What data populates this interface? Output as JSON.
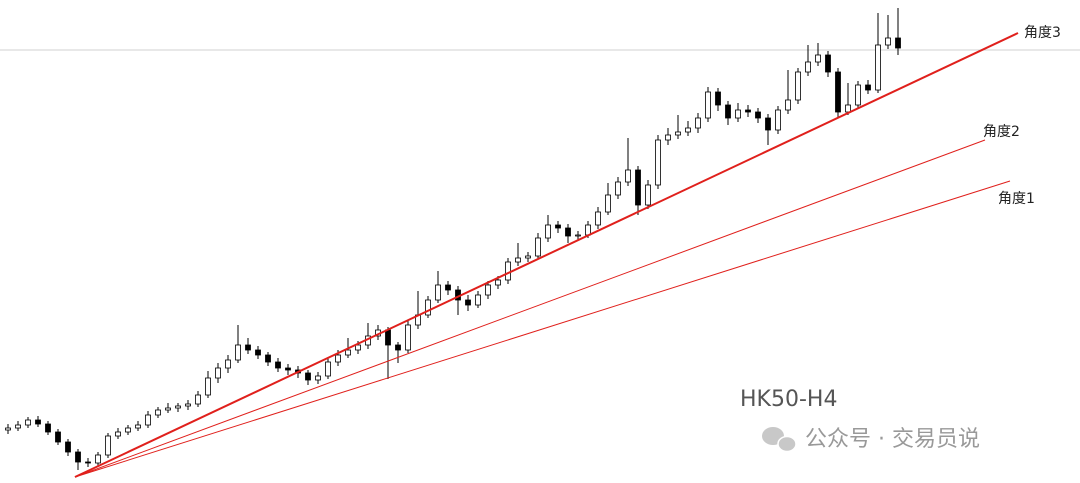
{
  "chart_data": {
    "type": "candlestick",
    "watermark": "HK50-H4",
    "footer": "公众号 · 交易员说",
    "xlim": [
      -0.8,
      107.2
    ],
    "ylim": [
      0,
      483
    ],
    "hline": 433,
    "up_color": "#ffffff",
    "down_color": "#000000",
    "line_color": "#e0201c",
    "open": [
      53,
      55,
      58,
      63,
      59,
      51,
      41,
      31,
      21,
      20,
      28,
      47,
      51,
      55,
      58,
      68,
      73,
      75,
      77,
      79,
      88,
      105,
      115,
      123,
      138,
      133,
      128,
      121,
      115,
      113,
      110,
      103,
      107,
      121,
      128,
      133,
      138,
      147,
      153,
      138,
      133,
      158,
      168,
      183,
      198,
      193,
      183,
      178,
      188,
      198,
      203,
      221,
      225,
      227,
      245,
      258,
      255,
      247,
      248,
      258,
      271,
      288,
      301,
      313,
      278,
      298,
      343,
      348,
      351,
      355,
      365,
      391,
      378,
      365,
      373,
      371,
      365,
      353,
      373,
      383,
      411,
      421,
      428,
      411,
      371,
      378,
      398,
      393,
      438,
      445
    ],
    "high": [
      59,
      62,
      66,
      67,
      62,
      54,
      44,
      34,
      25,
      31,
      50,
      55,
      58,
      62,
      72,
      76,
      80,
      80,
      83,
      92,
      112,
      120,
      128,
      158,
      145,
      137,
      131,
      125,
      119,
      117,
      113,
      111,
      125,
      133,
      145,
      142,
      160,
      158,
      156,
      141,
      162,
      192,
      187,
      212,
      202,
      197,
      188,
      192,
      202,
      207,
      225,
      240,
      231,
      250,
      268,
      262,
      259,
      252,
      262,
      276,
      300,
      306,
      345,
      317,
      303,
      348,
      355,
      368,
      362,
      370,
      396,
      395,
      382,
      380,
      378,
      375,
      369,
      377,
      413,
      415,
      438,
      440,
      432,
      415,
      400,
      402,
      403,
      470,
      468,
      475
    ],
    "low": [
      49,
      52,
      55,
      56,
      48,
      38,
      27,
      13,
      16,
      17,
      25,
      44,
      48,
      52,
      55,
      65,
      70,
      71,
      73,
      76,
      85,
      100,
      110,
      120,
      129,
      124,
      117,
      111,
      108,
      105,
      98,
      99,
      104,
      117,
      125,
      129,
      134,
      143,
      104,
      120,
      130,
      154,
      165,
      180,
      188,
      168,
      172,
      175,
      184,
      194,
      199,
      217,
      221,
      224,
      241,
      250,
      240,
      242,
      245,
      254,
      268,
      284,
      297,
      268,
      274,
      294,
      338,
      344,
      347,
      350,
      361,
      372,
      358,
      361,
      366,
      360,
      338,
      349,
      369,
      379,
      407,
      417,
      406,
      365,
      368,
      374,
      389,
      390,
      434,
      428
    ],
    "close": [
      55,
      58,
      63,
      59,
      51,
      41,
      31,
      21,
      20,
      28,
      47,
      51,
      55,
      58,
      68,
      73,
      75,
      77,
      79,
      88,
      105,
      115,
      123,
      138,
      133,
      128,
      121,
      115,
      113,
      110,
      103,
      107,
      121,
      128,
      133,
      138,
      147,
      153,
      138,
      133,
      158,
      168,
      183,
      198,
      193,
      183,
      178,
      188,
      198,
      203,
      221,
      225,
      227,
      245,
      258,
      255,
      247,
      248,
      258,
      271,
      288,
      301,
      313,
      278,
      298,
      343,
      348,
      351,
      355,
      365,
      391,
      378,
      365,
      373,
      371,
      365,
      353,
      373,
      383,
      411,
      421,
      428,
      411,
      371,
      378,
      398,
      393,
      438,
      445,
      435
    ],
    "trendlines": [
      {
        "label": "角度1",
        "x": [
          6.7,
          100.2
        ],
        "y": [
          6,
          302
        ],
        "width": 1
      },
      {
        "label": "角度2",
        "x": [
          6.7,
          97.7
        ],
        "y": [
          6,
          343
        ],
        "width": 1
      },
      {
        "label": "角度3",
        "x": [
          6.7,
          101.0
        ],
        "y": [
          6,
          450
        ],
        "width": 2
      }
    ]
  }
}
